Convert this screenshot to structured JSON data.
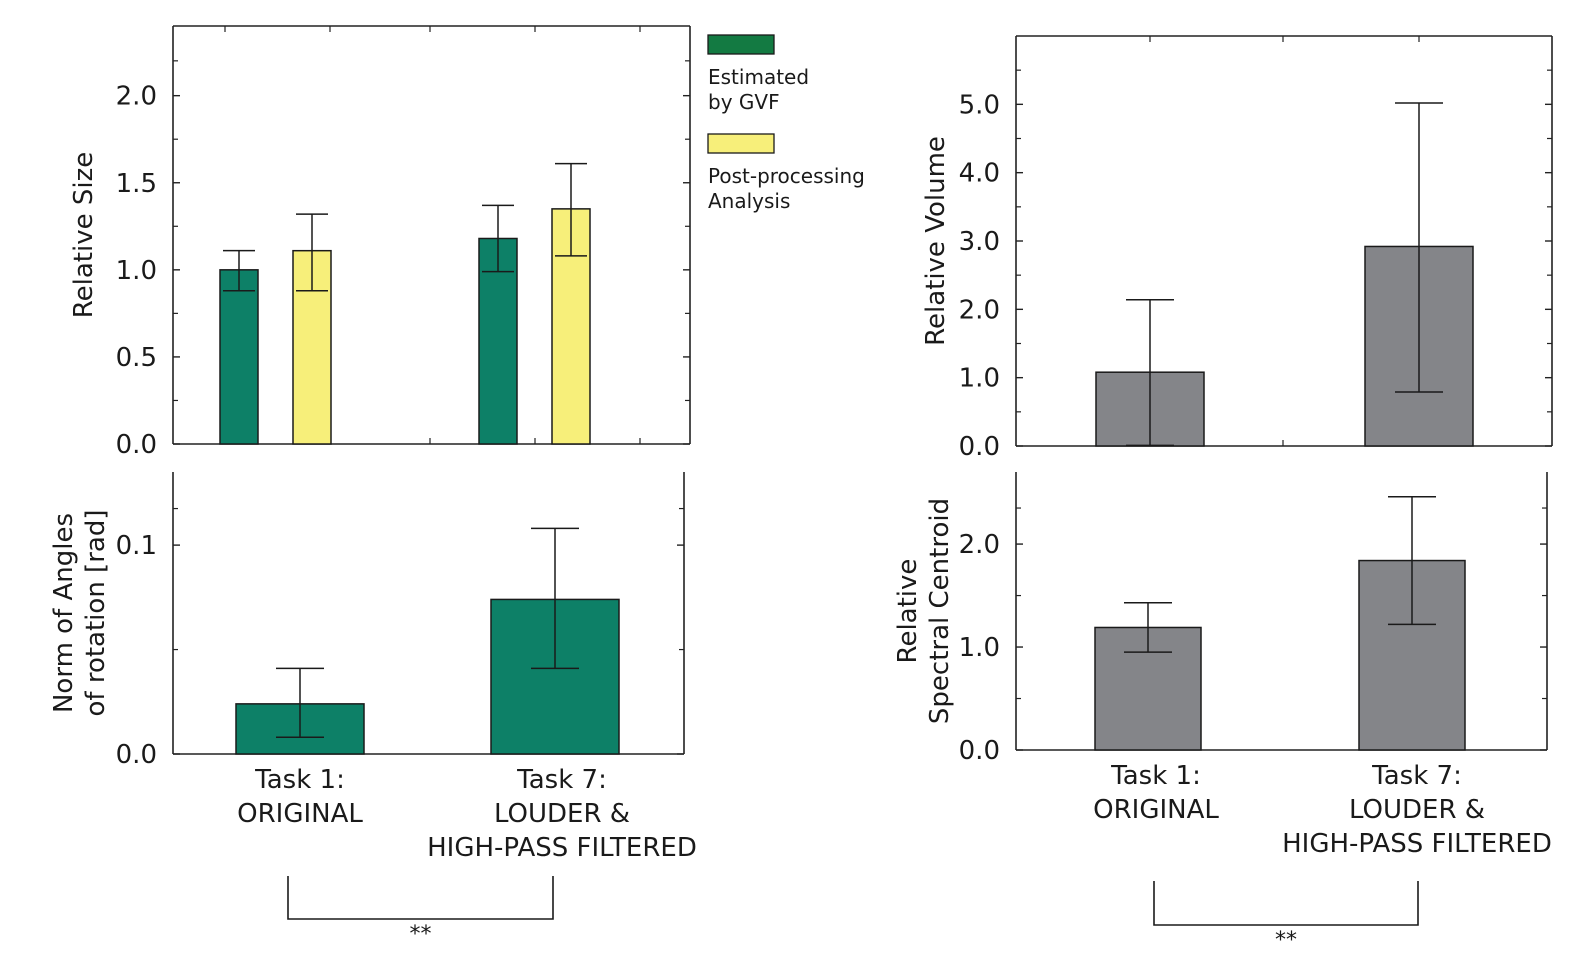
{
  "legend": {
    "items": [
      {
        "label_lines": [
          "Estimated",
          "by GVF"
        ],
        "color": "#137a42"
      },
      {
        "label_lines": [
          "Post-processing",
          "Analysis"
        ],
        "color": "#f7ef7a"
      }
    ]
  },
  "significance": {
    "left": "**",
    "right": "**"
  },
  "chart_data": [
    {
      "id": "relative-size",
      "type": "bar",
      "ylabel": "Relative Size",
      "categories": [
        "Task 1: ORIGINAL",
        "Task 7: LOUDER & HIGH-PASS FILTERED"
      ],
      "series": [
        {
          "name": "Estimated by GVF",
          "values": [
            1.0,
            1.18
          ],
          "err_low": [
            0.88,
            0.99
          ],
          "err_high": [
            1.11,
            1.37
          ],
          "color": "#0d8067"
        },
        {
          "name": "Post-processing Analysis",
          "values": [
            1.11,
            1.35
          ],
          "err_low": [
            0.88,
            1.08
          ],
          "err_high": [
            1.32,
            1.61
          ],
          "color": "#f7ef7a"
        }
      ],
      "ylim": [
        0,
        2.4
      ],
      "yticks": [
        0.0,
        0.5,
        1.0,
        1.5,
        2.0
      ],
      "ytick_labels": [
        "0.0",
        "0.5",
        "1.0",
        "1.5",
        "2.0"
      ]
    },
    {
      "id": "rotation-norm",
      "type": "bar",
      "ylabel_lines": [
        "Norm of Angles",
        "of rotation [rad]"
      ],
      "categories": [
        "Task 1: ORIGINAL",
        "Task 7: LOUDER & HIGH-PASS FILTERED"
      ],
      "category_lines": [
        [
          "Task 1:",
          "ORIGINAL"
        ],
        [
          "Task 7:",
          "LOUDER &",
          "HIGH-PASS FILTERED"
        ]
      ],
      "values": [
        0.024,
        0.074
      ],
      "err_low": [
        0.008,
        0.041
      ],
      "err_high": [
        0.041,
        0.108
      ],
      "color": "#0d8067",
      "ylim": [
        0,
        0.135
      ],
      "yticks": [
        0.0,
        0.1
      ],
      "ytick_labels": [
        "0.0",
        "0.1"
      ]
    },
    {
      "id": "relative-volume",
      "type": "bar",
      "ylabel": "Relative Volume",
      "categories": [
        "Task 1: ORIGINAL",
        "Task 7: LOUDER & HIGH-PASS FILTERED"
      ],
      "values": [
        1.08,
        2.92
      ],
      "err_low": [
        0.01,
        0.79
      ],
      "err_high": [
        2.14,
        5.02
      ],
      "color": "#848589",
      "ylim": [
        0,
        6.0
      ],
      "yticks": [
        0.0,
        1.0,
        2.0,
        3.0,
        4.0,
        5.0
      ],
      "ytick_labels": [
        "0.0",
        "1.0",
        "2.0",
        "3.0",
        "4.0",
        "5.0"
      ]
    },
    {
      "id": "spectral-centroid",
      "type": "bar",
      "ylabel_lines": [
        "Relative",
        "Spectral Centroid"
      ],
      "categories": [
        "Task 1: ORIGINAL",
        "Task 7: LOUDER & HIGH-PASS FILTERED"
      ],
      "category_lines": [
        [
          "Task 1:",
          "ORIGINAL"
        ],
        [
          "Task 7:",
          "LOUDER &",
          "HIGH-PASS FILTERED"
        ]
      ],
      "values": [
        1.19,
        1.84
      ],
      "err_low": [
        0.95,
        1.22
      ],
      "err_high": [
        1.43,
        2.46
      ],
      "color": "#848589",
      "ylim": [
        0,
        2.7
      ],
      "yticks": [
        0.0,
        1.0,
        2.0
      ],
      "ytick_labels": [
        "0.0",
        "1.0",
        "2.0"
      ]
    }
  ]
}
